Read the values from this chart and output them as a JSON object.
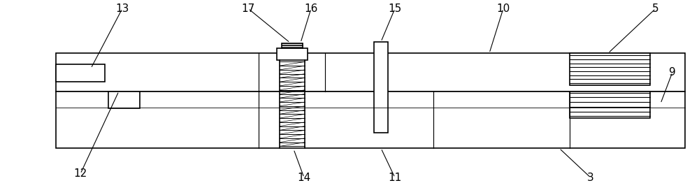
{
  "bg_color": "#ffffff",
  "line_color": "#000000",
  "fig_width": 10.0,
  "fig_height": 2.72,
  "dpi": 100,
  "label_fontsize": 11
}
